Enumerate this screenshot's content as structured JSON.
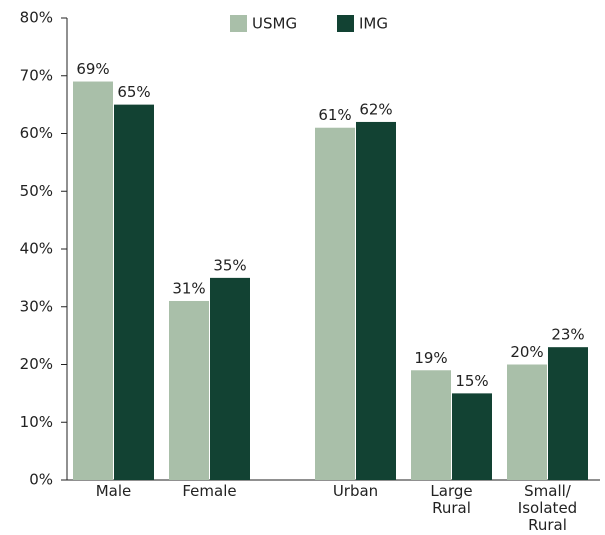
{
  "chart_data": {
    "type": "bar",
    "categories": [
      "Male",
      "Female",
      "Urban",
      "Large\nRural",
      "Small/\nIsolated\nRural"
    ],
    "series": [
      {
        "name": "USMG",
        "color": "#a9bfa9",
        "values": [
          69,
          31,
          61,
          19,
          20
        ],
        "value_labels": [
          "69%",
          "31%",
          "61%",
          "19%",
          "20%"
        ]
      },
      {
        "name": "IMG",
        "color": "#124233",
        "values": [
          65,
          35,
          62,
          15,
          23
        ],
        "value_labels": [
          "65%",
          "35%",
          "62%",
          "15%",
          "23%"
        ]
      }
    ],
    "ylim": [
      0,
      80
    ],
    "yticks": [
      {
        "value": 0,
        "label": "0%"
      },
      {
        "value": 10,
        "label": "10%"
      },
      {
        "value": 20,
        "label": "20%"
      },
      {
        "value": 30,
        "label": "30%"
      },
      {
        "value": 40,
        "label": "40%"
      },
      {
        "value": 50,
        "label": "50%"
      },
      {
        "value": 60,
        "label": "60%"
      },
      {
        "value": 70,
        "label": "70%"
      },
      {
        "value": 80,
        "label": "80%"
      }
    ],
    "grid": false,
    "legend": "top"
  }
}
